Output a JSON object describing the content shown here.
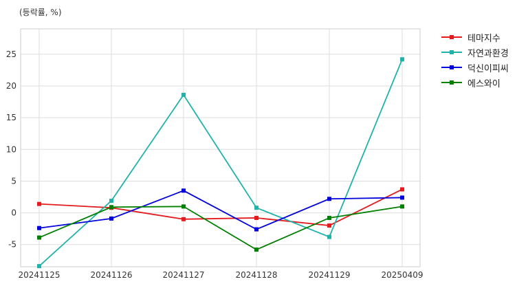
{
  "chart_data": {
    "type": "line",
    "unit_label": "(등락률, %)",
    "categories": [
      "20241125",
      "20241126",
      "20241127",
      "20241128",
      "20241129",
      "20250409"
    ],
    "ylim": [
      -8.5,
      29
    ],
    "yticks": [
      -5,
      0,
      5,
      10,
      15,
      20,
      25
    ],
    "grid": true,
    "legend_position": "right-top outside",
    "series": [
      {
        "name": "테마지수",
        "color": "#e41a1c",
        "values": [
          1.4,
          0.8,
          -1.0,
          -0.8,
          -2.0,
          3.7
        ]
      },
      {
        "name": "자연과환경",
        "color": "#20b2aa",
        "values": [
          -8.4,
          1.9,
          18.6,
          0.8,
          -3.8,
          24.2
        ]
      },
      {
        "name": "덕신이피씨",
        "color": "#0000dd",
        "values": [
          -2.4,
          -0.9,
          3.5,
          -2.6,
          2.2,
          2.4
        ]
      },
      {
        "name": "에스와이",
        "color": "#007f00",
        "values": [
          -3.9,
          0.9,
          1.0,
          -5.8,
          -0.8,
          1.0
        ]
      }
    ]
  }
}
